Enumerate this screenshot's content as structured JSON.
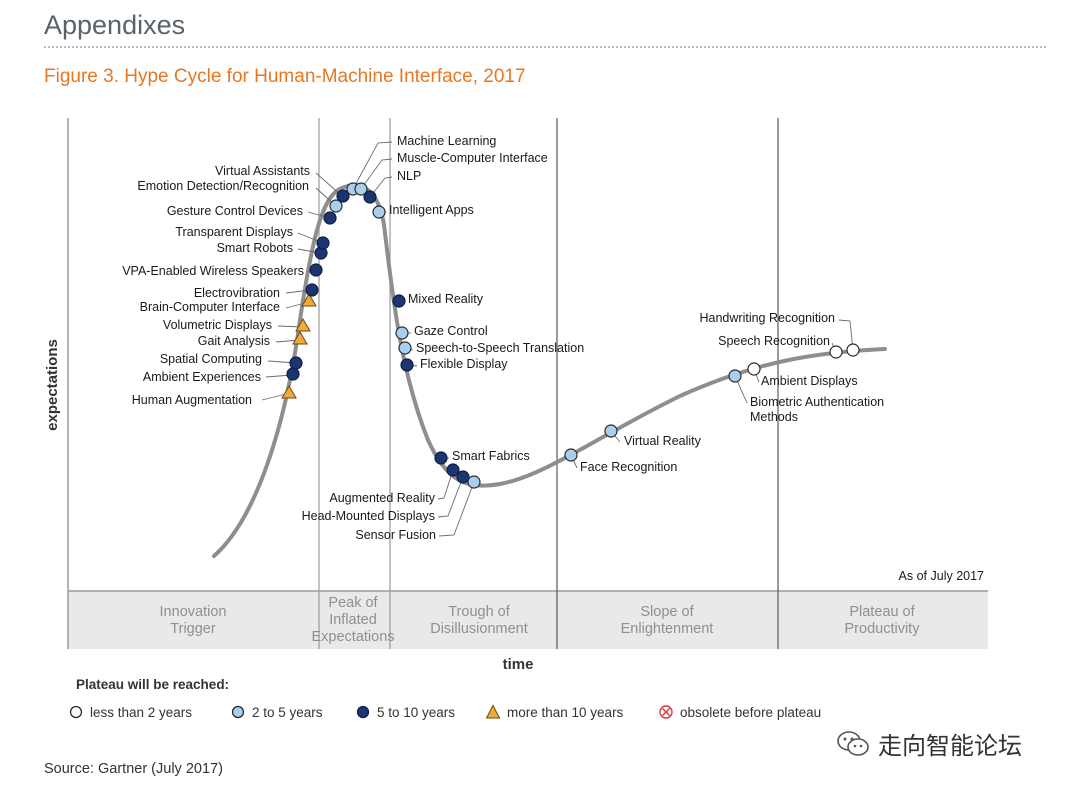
{
  "page": {
    "heading": "Appendixes",
    "figure_title": "Figure 3. Hype Cycle for Human-Machine Interface, 2017",
    "source": "Source: Gartner (July 2017)",
    "watermark": "走向智能论坛"
  },
  "chart_data": {
    "type": "scatter",
    "title": "Figure 3. Hype Cycle for Human-Machine Interface, 2017",
    "xlabel": "time",
    "ylabel": "expectations",
    "annotation": "As of July 2017",
    "phases": [
      {
        "key": "innovation_trigger",
        "lines": [
          "Innovation",
          "Trigger"
        ]
      },
      {
        "key": "peak",
        "lines": [
          "Peak of",
          "Inflated",
          "Expectations"
        ]
      },
      {
        "key": "trough",
        "lines": [
          "Trough of",
          "Disillusionment"
        ]
      },
      {
        "key": "slope",
        "lines": [
          "Slope of",
          "Enlightenment"
        ]
      },
      {
        "key": "plateau",
        "lines": [
          "Plateau of",
          "Productivity"
        ]
      }
    ],
    "legend": {
      "title": "Plateau will be reached:",
      "items": [
        {
          "key": "lt2",
          "label": "less than 2 years",
          "color": "#ffffff"
        },
        {
          "key": "2to5",
          "label": "2 to 5 years",
          "color": "#a9cfee"
        },
        {
          "key": "5to10",
          "label": "5 to 10 years",
          "color": "#1c3570"
        },
        {
          "key": "gt10",
          "label": "more than 10 years",
          "color": "#f2a93b"
        },
        {
          "key": "obsolete",
          "label": "obsolete before plateau",
          "color": "#d23a3a"
        }
      ]
    },
    "technologies": [
      {
        "name": "Human Augmentation",
        "category": "gt10"
      },
      {
        "name": "Ambient Experiences",
        "category": "5to10"
      },
      {
        "name": "Spatial Computing",
        "category": "5to10"
      },
      {
        "name": "Gait Analysis",
        "category": "gt10"
      },
      {
        "name": "Volumetric Displays",
        "category": "gt10"
      },
      {
        "name": "Brain-Computer Interface",
        "category": "gt10"
      },
      {
        "name": "Electrovibration",
        "category": "5to10"
      },
      {
        "name": "VPA-Enabled Wireless Speakers",
        "category": "5to10"
      },
      {
        "name": "Smart Robots",
        "category": "5to10"
      },
      {
        "name": "Transparent Displays",
        "category": "5to10"
      },
      {
        "name": "Gesture Control Devices",
        "category": "5to10"
      },
      {
        "name": "Emotion Detection/Recognition",
        "category": "2to5"
      },
      {
        "name": "Virtual Assistants",
        "category": "5to10"
      },
      {
        "name": "Machine Learning",
        "category": "2to5"
      },
      {
        "name": "Muscle-Computer Interface",
        "category": "2to5"
      },
      {
        "name": "NLP",
        "category": "5to10"
      },
      {
        "name": "Intelligent Apps",
        "category": "2to5"
      },
      {
        "name": "Mixed Reality",
        "category": "5to10"
      },
      {
        "name": "Gaze Control",
        "category": "2to5"
      },
      {
        "name": "Speech-to-Speech Translation",
        "category": "2to5"
      },
      {
        "name": "Flexible Display",
        "category": "5to10"
      },
      {
        "name": "Smart Fabrics",
        "category": "5to10"
      },
      {
        "name": "Augmented Reality",
        "category": "5to10"
      },
      {
        "name": "Head-Mounted Displays",
        "category": "5to10"
      },
      {
        "name": "Sensor Fusion",
        "category": "2to5"
      },
      {
        "name": "Face Recognition",
        "category": "2to5"
      },
      {
        "name": "Virtual Reality",
        "category": "2to5"
      },
      {
        "name": "Biometric Authentication Methods",
        "category": "2to5"
      },
      {
        "name": "Ambient Displays",
        "category": "lt2"
      },
      {
        "name": "Speech Recognition",
        "category": "lt2"
      },
      {
        "name": "Handwriting Recognition",
        "category": "lt2"
      }
    ]
  }
}
